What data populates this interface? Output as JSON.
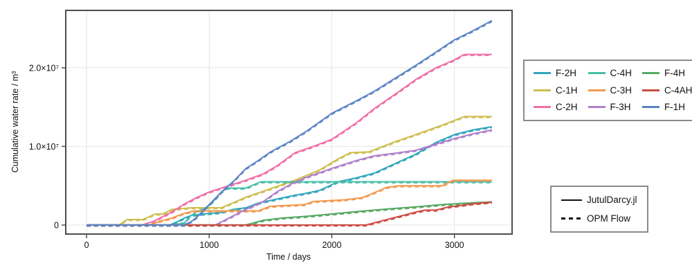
{
  "figure": {
    "kind": "line-chart",
    "background": "#ffffff",
    "frame_color": "#4d4d4d",
    "grid_color": "#e4e4e4",
    "text_color": "#111111",
    "legend_border_color": "#8a8a8a"
  },
  "chart_data": {
    "type": "line",
    "xlabel": "Time / days",
    "ylabel": "Cumulative water rate / m³",
    "xlim": [
      -170,
      3470
    ],
    "ylim_1e6": [
      -1.15,
      27.3
    ],
    "grid": true,
    "legend_position": "right",
    "xticks": {
      "values": [
        0,
        1000,
        2000,
        3000
      ],
      "labels": [
        "0",
        "1000",
        "2000",
        "3000"
      ]
    },
    "yticks": {
      "values_1e6": [
        0,
        10,
        20
      ],
      "labels": [
        "0",
        "1.0×10⁷",
        "2.0×10⁷"
      ]
    },
    "series": [
      {
        "name": "F-2H",
        "color": "#30a5bd",
        "points_day_1e6m3": [
          [
            0,
            0
          ],
          [
            680,
            0
          ],
          [
            750,
            0.5
          ],
          [
            800,
            0.9
          ],
          [
            850,
            1.2
          ],
          [
            950,
            1.4
          ],
          [
            1100,
            1.6
          ],
          [
            1200,
            2.0
          ],
          [
            1300,
            2.2
          ],
          [
            1400,
            2.8
          ],
          [
            1550,
            3.3
          ],
          [
            1700,
            3.8
          ],
          [
            1780,
            4.0
          ],
          [
            1900,
            4.4
          ],
          [
            2050,
            5.5
          ],
          [
            2200,
            6.0
          ],
          [
            2345,
            6.6
          ],
          [
            2500,
            7.7
          ],
          [
            2684,
            9.0
          ],
          [
            2850,
            10.5
          ],
          [
            3000,
            11.5
          ],
          [
            3150,
            12.1
          ],
          [
            3305,
            12.5
          ]
        ]
      },
      {
        "name": "C-1H",
        "color": "#cdbe4f",
        "points_day_1e6m3": [
          [
            0,
            0
          ],
          [
            264,
            0
          ],
          [
            330,
            0.7
          ],
          [
            460,
            0.7
          ],
          [
            560,
            1.4
          ],
          [
            620,
            1.4
          ],
          [
            700,
            2.0
          ],
          [
            858,
            2.2
          ],
          [
            1100,
            2.2
          ],
          [
            1309,
            3.6
          ],
          [
            1441,
            4.3
          ],
          [
            1700,
            5.7
          ],
          [
            1900,
            7.0
          ],
          [
            2050,
            8.4
          ],
          [
            2150,
            9.2
          ],
          [
            2300,
            9.3
          ],
          [
            2500,
            10.5
          ],
          [
            2684,
            11.5
          ],
          [
            2900,
            12.7
          ],
          [
            3080,
            13.8
          ],
          [
            3305,
            13.8
          ]
        ]
      },
      {
        "name": "C-2H",
        "color": "#f06ea6",
        "points_day_1e6m3": [
          [
            0,
            0
          ],
          [
            450,
            0
          ],
          [
            550,
            0.5
          ],
          [
            700,
            1.7
          ],
          [
            800,
            2.7
          ],
          [
            900,
            3.5
          ],
          [
            1000,
            4.2
          ],
          [
            1100,
            4.7
          ],
          [
            1200,
            5.2
          ],
          [
            1300,
            5.7
          ],
          [
            1441,
            6.5
          ],
          [
            1550,
            7.5
          ],
          [
            1700,
            9.2
          ],
          [
            1850,
            10.0
          ],
          [
            2000,
            10.9
          ],
          [
            2200,
            13.0
          ],
          [
            2345,
            14.8
          ],
          [
            2550,
            17.0
          ],
          [
            2684,
            18.5
          ],
          [
            2850,
            20.0
          ],
          [
            3000,
            21.0
          ],
          [
            3079,
            21.7
          ],
          [
            3305,
            21.7
          ]
        ]
      },
      {
        "name": "C-4H",
        "color": "#46bda7",
        "points_day_1e6m3": [
          [
            0,
            0
          ],
          [
            706,
            0
          ],
          [
            800,
            0.3
          ],
          [
            850,
            1.2
          ],
          [
            900,
            1.7
          ],
          [
            950,
            2.0
          ],
          [
            1000,
            2.5
          ],
          [
            1050,
            3.3
          ],
          [
            1100,
            4.2
          ],
          [
            1147,
            4.7
          ],
          [
            1300,
            4.7
          ],
          [
            1360,
            5.1
          ],
          [
            1420,
            5.5
          ],
          [
            3305,
            5.5
          ]
        ]
      },
      {
        "name": "C-3H",
        "color": "#f2994e",
        "points_day_1e6m3": [
          [
            0,
            0
          ],
          [
            514,
            0
          ],
          [
            600,
            0.5
          ],
          [
            700,
            0.9
          ],
          [
            780,
            1.4
          ],
          [
            875,
            1.8
          ],
          [
            1400,
            1.8
          ],
          [
            1500,
            2.4
          ],
          [
            1780,
            2.6
          ],
          [
            1850,
            3.0
          ],
          [
            2100,
            3.2
          ],
          [
            2250,
            3.5
          ],
          [
            2330,
            4.0
          ],
          [
            2450,
            4.8
          ],
          [
            2550,
            5.0
          ],
          [
            2900,
            5.0
          ],
          [
            2990,
            5.7
          ],
          [
            3305,
            5.7
          ]
        ]
      },
      {
        "name": "F-3H",
        "color": "#ae7fc9",
        "points_day_1e6m3": [
          [
            0,
            0
          ],
          [
            1050,
            0
          ],
          [
            1200,
            1.2
          ],
          [
            1300,
            2.0
          ],
          [
            1441,
            3.0
          ],
          [
            1550,
            4.2
          ],
          [
            1667,
            5.2
          ],
          [
            1780,
            6.0
          ],
          [
            2000,
            7.2
          ],
          [
            2200,
            8.2
          ],
          [
            2345,
            8.8
          ],
          [
            2500,
            9.1
          ],
          [
            2684,
            9.5
          ],
          [
            2850,
            10.3
          ],
          [
            3000,
            11.0
          ],
          [
            3150,
            11.6
          ],
          [
            3305,
            12.1
          ]
        ]
      },
      {
        "name": "F-4H",
        "color": "#55a860",
        "points_day_1e6m3": [
          [
            0,
            0
          ],
          [
            1300,
            0
          ],
          [
            1441,
            0.6
          ],
          [
            1600,
            0.9
          ],
          [
            1780,
            1.1
          ],
          [
            2000,
            1.4
          ],
          [
            2200,
            1.7
          ],
          [
            2345,
            1.9
          ],
          [
            2500,
            2.1
          ],
          [
            2684,
            2.3
          ],
          [
            2900,
            2.6
          ],
          [
            3100,
            2.8
          ],
          [
            3305,
            2.95
          ]
        ]
      },
      {
        "name": "C-4AH",
        "color": "#cb4a42",
        "points_day_1e6m3": [
          [
            0,
            0
          ],
          [
            2280,
            0
          ],
          [
            2400,
            0.5
          ],
          [
            2500,
            0.9
          ],
          [
            2600,
            1.3
          ],
          [
            2700,
            1.7
          ],
          [
            2760,
            1.9
          ],
          [
            2850,
            1.9
          ],
          [
            2950,
            2.3
          ],
          [
            3050,
            2.5
          ],
          [
            3150,
            2.7
          ],
          [
            3250,
            2.85
          ],
          [
            3305,
            2.9
          ]
        ]
      },
      {
        "name": "F-1H",
        "color": "#5b84c4",
        "points_day_1e6m3": [
          [
            0,
            0
          ],
          [
            790,
            0
          ],
          [
            850,
            0.4
          ],
          [
            900,
            1.0
          ],
          [
            950,
            1.8
          ],
          [
            1000,
            2.6
          ],
          [
            1100,
            4.2
          ],
          [
            1200,
            5.6
          ],
          [
            1300,
            7.2
          ],
          [
            1400,
            8.2
          ],
          [
            1500,
            9.3
          ],
          [
            1667,
            10.7
          ],
          [
            1800,
            12.0
          ],
          [
            2000,
            14.2
          ],
          [
            2200,
            15.8
          ],
          [
            2345,
            17.0
          ],
          [
            2500,
            18.5
          ],
          [
            2684,
            20.3
          ],
          [
            2850,
            22.0
          ],
          [
            2994,
            23.5
          ],
          [
            3150,
            24.7
          ],
          [
            3305,
            26.0
          ]
        ]
      }
    ],
    "series_legend_rows": [
      [
        "F-2H",
        "C-4H",
        "F-4H"
      ],
      [
        "C-1H",
        "C-3H",
        "C-4AH"
      ],
      [
        "C-2H",
        "F-3H",
        "F-1H"
      ]
    ],
    "solver_legend": [
      {
        "label": "JutulDarcy.jl",
        "style": "solid",
        "color": "#111111"
      },
      {
        "label": "OPM Flow",
        "style": "dashed",
        "color": "#111111"
      }
    ]
  }
}
